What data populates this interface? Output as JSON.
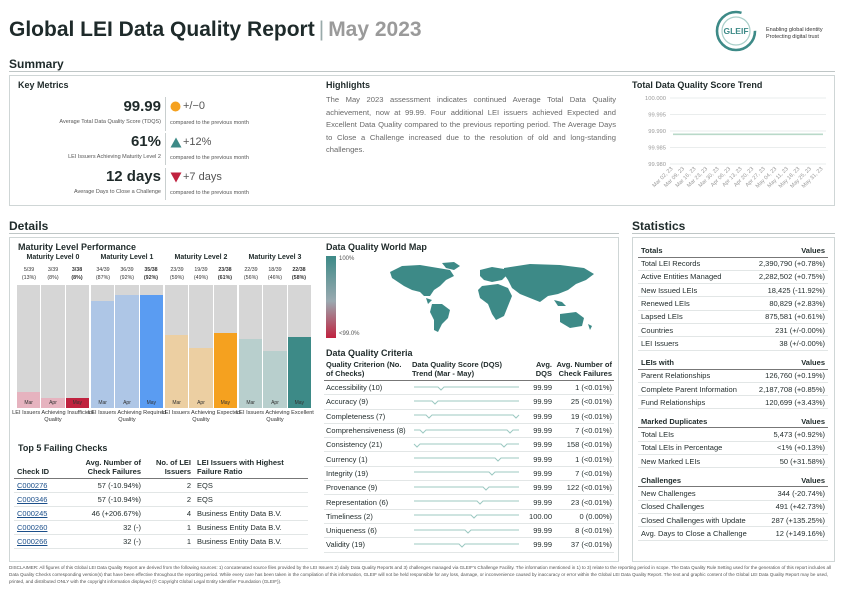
{
  "header": {
    "title": "Global LEI Data Quality Report",
    "separator": "|",
    "month": "May 2023",
    "logo_text": "GLEIF",
    "logo_tagline_1": "Enabling global identity",
    "logo_tagline_2": "Protecting digital trust",
    "colors": {
      "brand": "#3d8a87",
      "accent_orange": "#f5a11f",
      "accent_red": "#c0223f"
    }
  },
  "summary": {
    "title": "Summary",
    "key_metrics": {
      "title": "Key Metrics",
      "items": [
        {
          "value": "99.99",
          "label": "Average Total Data Quality Score (TDQS)",
          "icon": "circle-icon",
          "delta": "+/−0",
          "compare": "compared to the previous month"
        },
        {
          "value": "61%",
          "label": "LEI Issuers Achieving Maturity Level 2",
          "icon": "triangle-up-icon",
          "delta": "+12%",
          "compare": "compared to the previous month"
        },
        {
          "value": "12 days",
          "label": "Average Days to Close a Challenge",
          "icon": "triangle-down-icon",
          "delta": "+7 days",
          "compare": "compared to the previous month"
        }
      ]
    },
    "highlights": {
      "title": "Highlights",
      "text": "The May 2023 assessment indicates continued Average Total Data Quality achievement, now at 99.99. Four additional LEI issuers achieved Expected and Excellent Data Quality compared to the previous reporting period. The Average Days to Close a Challenge increased due to the resolution of old and long-standing challenges."
    }
  },
  "chart_data": {
    "type": "line",
    "title": "Total Data Quality Score Trend",
    "x": [
      "Mar 02, 23",
      "Mar 09, 23",
      "Mar 16, 23",
      "Mar 23, 23",
      "Mar 30, 23",
      "Apr 06, 23",
      "Apr 13, 23",
      "Apr 20, 23",
      "Apr 27, 23",
      "May 04, 23",
      "May 11, 23",
      "May 18, 23",
      "May 25, 23",
      "May 31, 23"
    ],
    "y_ticks": [
      "100.000",
      "99.995",
      "99.990",
      "99.985",
      "99.980"
    ],
    "ylim": [
      99.98,
      100.0
    ],
    "series": [
      {
        "values": [
          99.989,
          99.989,
          99.989,
          99.989,
          99.989,
          99.989,
          99.989,
          99.989,
          99.989,
          99.989,
          99.989,
          99.989,
          99.989,
          99.989
        ]
      }
    ],
    "grid": true,
    "line_color": "#b9d9c9"
  },
  "details": {
    "title": "Details",
    "maturity": {
      "title": "Maturity Level Performance",
      "months": [
        "Mar",
        "Apr",
        "May"
      ],
      "levels": [
        {
          "name": "Maturity Level 0",
          "counts": [
            "5/39",
            "3/39",
            "3/38"
          ],
          "pcts": [
            "(13%)",
            "(8%)",
            "(8%)"
          ],
          "values": [
            0.13,
            0.08,
            0.08
          ],
          "caption": "LEI Issuers Achieving Insufficient Quality",
          "colors": [
            "#e6b3bf",
            "#e6b3bf",
            "#c0223f"
          ]
        },
        {
          "name": "Maturity Level 1",
          "counts": [
            "34/39",
            "36/39",
            "35/38"
          ],
          "pcts": [
            "(87%)",
            "(92%)",
            "(92%)"
          ],
          "values": [
            0.87,
            0.92,
            0.92
          ],
          "caption": "LEI Issuers Achieving Required Quality",
          "colors": [
            "#aec6e6",
            "#aec6e6",
            "#5a9cf2"
          ]
        },
        {
          "name": "Maturity Level 2",
          "counts": [
            "23/39",
            "19/39",
            "23/38"
          ],
          "pcts": [
            "(59%)",
            "(49%)",
            "(61%)"
          ],
          "values": [
            0.59,
            0.49,
            0.61
          ],
          "caption": "LEI Issuers Achieving Expected Quality",
          "colors": [
            "#eccfa2",
            "#eccfa2",
            "#f5a11f"
          ]
        },
        {
          "name": "Maturity Level 3",
          "counts": [
            "22/39",
            "18/39",
            "22/38"
          ],
          "pcts": [
            "(56%)",
            "(46%)",
            "(58%)"
          ],
          "values": [
            0.56,
            0.46,
            0.58
          ],
          "caption": "LEI Issuers Achieving Excellent Quality",
          "colors": [
            "#b8cfcd",
            "#b8cfcd",
            "#3d8a87"
          ]
        }
      ]
    },
    "map": {
      "title": "Data Quality World Map",
      "legend_top": "100%",
      "legend_bottom": "<99.0%"
    },
    "top5": {
      "title": "Top 5 Failing Checks",
      "headers": {
        "id": "Check ID",
        "avg": "Avg. Number of Check Failures",
        "issuers": "No. of LEI Issuers",
        "highest": "LEI Issuers with Highest Failure Ratio"
      },
      "rows": [
        {
          "id": "C000276",
          "avg": "57 (-10.94%)",
          "issuers": "2",
          "highest": "EQS"
        },
        {
          "id": "C000346",
          "avg": "57 (-10.94%)",
          "issuers": "2",
          "highest": "EQS"
        },
        {
          "id": "C000245",
          "avg": "46 (+206.67%)",
          "issuers": "4",
          "highest": "Business Entity Data B.V."
        },
        {
          "id": "C000260",
          "avg": "32 (-)",
          "issuers": "1",
          "highest": "Business Entity Data B.V."
        },
        {
          "id": "C000266",
          "avg": "32 (-)",
          "issuers": "1",
          "highest": "Business Entity Data B.V."
        }
      ]
    },
    "criteria": {
      "title": "Data Quality Criteria",
      "headers": {
        "criterion": "Quality Criterion (No. of Checks)",
        "trend": "Data Quality Score (DQS) Trend (Mar - May)",
        "dqs": "Avg. DQS",
        "failures": "Avg. Number of Check Failures"
      },
      "rows": [
        {
          "criterion": "Accessibility (10)",
          "dqs": "99.99",
          "failures": "1 (<0.01%)"
        },
        {
          "criterion": "Accuracy (9)",
          "dqs": "99.99",
          "failures": "25 (<0.01%)"
        },
        {
          "criterion": "Completeness (7)",
          "dqs": "99.99",
          "failures": "19 (<0.01%)"
        },
        {
          "criterion": "Comprehensiveness (8)",
          "dqs": "99.99",
          "failures": "7 (<0.01%)"
        },
        {
          "criterion": "Consistency (21)",
          "dqs": "99.99",
          "failures": "158 (<0.01%)"
        },
        {
          "criterion": "Currency (1)",
          "dqs": "99.99",
          "failures": "1 (<0.01%)"
        },
        {
          "criterion": "Integrity (19)",
          "dqs": "99.99",
          "failures": "7 (<0.01%)"
        },
        {
          "criterion": "Provenance (9)",
          "dqs": "99.99",
          "failures": "122 (<0.01%)"
        },
        {
          "criterion": "Representation (6)",
          "dqs": "99.99",
          "failures": "23 (<0.01%)"
        },
        {
          "criterion": "Timeliness (2)",
          "dqs": "100.00",
          "failures": "0 (0.00%)"
        },
        {
          "criterion": "Uniqueness (6)",
          "dqs": "99.99",
          "failures": "8 (<0.01%)"
        },
        {
          "criterion": "Validity (19)",
          "dqs": "99.99",
          "failures": "37 (<0.01%)"
        }
      ]
    }
  },
  "statistics": {
    "title": "Statistics",
    "groups": [
      {
        "name": "Totals",
        "values_label": "Values",
        "rows": [
          {
            "label": "Total LEI Records",
            "value": "2,390,790 (+0.78%)"
          },
          {
            "label": "Active Entities Managed",
            "value": "2,282,502 (+0.75%)"
          },
          {
            "label": "New Issued LEIs",
            "value": "18,425 (-11.92%)"
          },
          {
            "label": "Renewed LEIs",
            "value": "80,829 (+2.83%)"
          },
          {
            "label": "Lapsed LEIs",
            "value": "875,581 (+0.61%)"
          },
          {
            "label": "Countries",
            "value": "231 (+/-0.00%)"
          },
          {
            "label": "LEI Issuers",
            "value": "38 (+/-0.00%)"
          }
        ]
      },
      {
        "name": "LEIs with",
        "values_label": "Values",
        "rows": [
          {
            "label": "Parent Relationships",
            "value": "126,760 (+0.19%)"
          },
          {
            "label": "Complete Parent Information",
            "value": "2,187,708 (+0.85%)"
          },
          {
            "label": "Fund Relationships",
            "value": "120,699 (+3.43%)"
          }
        ]
      },
      {
        "name": "Marked Duplicates",
        "values_label": "Values",
        "rows": [
          {
            "label": "Total LEIs",
            "value": "5,473 (+0.92%)"
          },
          {
            "label": "Total LEIs in Percentage",
            "value": "<1% (+0.13%)"
          },
          {
            "label": "New Marked LEIs",
            "value": "50 (+31.58%)"
          }
        ]
      },
      {
        "name": "Challenges",
        "values_label": "Values",
        "rows": [
          {
            "label": "New Challenges",
            "value": "344 (-20.74%)"
          },
          {
            "label": "Closed Challenges",
            "value": "491 (+42.73%)"
          },
          {
            "label": "Closed Challenges with Update",
            "value": "287 (+135.25%)"
          },
          {
            "label": "Avg. Days to Close a Challenge",
            "value": "12 (+149.16%)"
          }
        ]
      }
    ]
  },
  "disclaimer": "DISCLAIMER: All figures of this Global LEI Data Quality Report are derived from the following sources: 1) concatenated source files provided by the LEI Issuers 2) daily Data Quality Reports and 3) challenges managed via GLEIF's Challenge Facility. The information mentioned in 1) to 3) relate to the reporting period in scope. The Data Quality Rule Setting used for the generation of this report includes all Data Quality Checks corresponding version(s) that have been effective throughout the reporting period. While every care has been taken in the compilation of this information, GLEIF will not be held responsible for any loss, damage, or inconvenience caused by inaccuracy or error within the Global LEI Data Quality Report. The text and graphic content of the Global LEI Data Quality Report may be used, printed, and distributed ONLY with the copyright information displayed (© Copyright Global Legal Entity Identifier Foundation (GLEIF))."
}
